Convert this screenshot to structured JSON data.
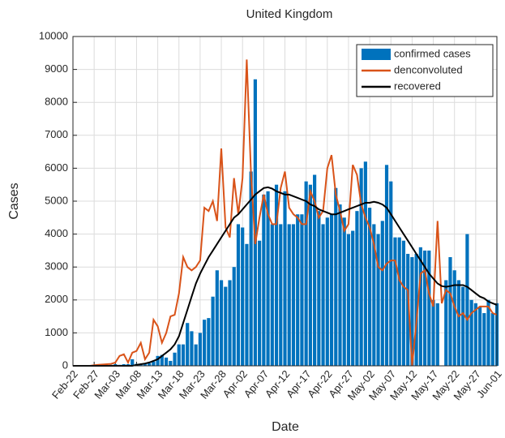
{
  "chart_data": {
    "type": "bar",
    "title": "United Kingdom",
    "xlabel": "Date",
    "ylabel": "Cases",
    "x": [
      0,
      1,
      2,
      3,
      4,
      5,
      6,
      7,
      8,
      9,
      10,
      11,
      12,
      13,
      14,
      15,
      16,
      17,
      18,
      19,
      20,
      21,
      22,
      23,
      24,
      25,
      26,
      27,
      28,
      29,
      30,
      31,
      32,
      33,
      34,
      35,
      36,
      37,
      38,
      39,
      40,
      41,
      42,
      43,
      44,
      45,
      46,
      47,
      48,
      49,
      50,
      51,
      52,
      53,
      54,
      55,
      56,
      57,
      58,
      59,
      60,
      61,
      62,
      63,
      64,
      65,
      66,
      67,
      68,
      69,
      70,
      71,
      72,
      73,
      74,
      75,
      76,
      77,
      78,
      79,
      80,
      81,
      82,
      83,
      84,
      85,
      86,
      87,
      88,
      89,
      90,
      91,
      92,
      93,
      94,
      95,
      96,
      97,
      98,
      99,
      100
    ],
    "xlim": [
      0,
      100
    ],
    "xticks": [
      {
        "value": 0,
        "label": "Feb-22"
      },
      {
        "value": 5,
        "label": "Feb-27"
      },
      {
        "value": 10,
        "label": "Mar-03"
      },
      {
        "value": 15,
        "label": "Mar-08"
      },
      {
        "value": 20,
        "label": "Mar-13"
      },
      {
        "value": 25,
        "label": "Mar-18"
      },
      {
        "value": 30,
        "label": "Mar-23"
      },
      {
        "value": 35,
        "label": "Mar-28"
      },
      {
        "value": 40,
        "label": "Apr-02"
      },
      {
        "value": 45,
        "label": "Apr-07"
      },
      {
        "value": 50,
        "label": "Apr-12"
      },
      {
        "value": 55,
        "label": "Apr-17"
      },
      {
        "value": 60,
        "label": "Apr-22"
      },
      {
        "value": 65,
        "label": "Apr-27"
      },
      {
        "value": 70,
        "label": "May-02"
      },
      {
        "value": 75,
        "label": "May-07"
      },
      {
        "value": 80,
        "label": "May-12"
      },
      {
        "value": 85,
        "label": "May-17"
      },
      {
        "value": 90,
        "label": "May-22"
      },
      {
        "value": 95,
        "label": "May-27"
      },
      {
        "value": 100,
        "label": "Jun-01"
      }
    ],
    "ylim": [
      0,
      10000
    ],
    "yticks": [
      0,
      1000,
      2000,
      3000,
      4000,
      5000,
      6000,
      7000,
      8000,
      9000,
      10000
    ],
    "grid": true,
    "legend": "upper right",
    "series": [
      {
        "name": "confirmed cases",
        "type": "bar",
        "color": "#0072bd",
        "values": [
          0,
          0,
          0,
          0,
          0,
          10,
          10,
          20,
          20,
          30,
          50,
          30,
          50,
          50,
          200,
          60,
          50,
          60,
          80,
          130,
          300,
          330,
          250,
          150,
          400,
          650,
          650,
          1300,
          1050,
          650,
          1000,
          1400,
          1450,
          2100,
          2900,
          2600,
          2400,
          2600,
          3000,
          4300,
          4200,
          3700,
          5900,
          8700,
          3800,
          5200,
          5300,
          4300,
          5500,
          4300,
          5300,
          4300,
          4300,
          4600,
          4600,
          5600,
          5500,
          5800,
          4700,
          4300,
          4500,
          4600,
          5400,
          4900,
          4500,
          4000,
          4100,
          4700,
          6000,
          6200,
          4800,
          4300,
          4000,
          4400,
          6100,
          5600,
          3900,
          3900,
          3800,
          3400,
          3300,
          3400,
          3600,
          3500,
          3500,
          2000,
          1900,
          0,
          2600,
          3300,
          2900,
          2600,
          2400,
          4000,
          2000,
          1900,
          1800,
          1600,
          2000,
          1600,
          1900
        ]
      },
      {
        "name": "denconvoluted",
        "type": "line",
        "color": "#d95319",
        "values": [
          0,
          0,
          0,
          0,
          0,
          20,
          30,
          40,
          50,
          60,
          100,
          300,
          350,
          100,
          400,
          450,
          700,
          200,
          400,
          1400,
          1200,
          700,
          1000,
          1500,
          1550,
          2200,
          3300,
          3000,
          2900,
          3000,
          3200,
          4800,
          4700,
          5000,
          4400,
          6600,
          4200,
          3900,
          5700,
          4600,
          5700,
          9300,
          5800,
          3700,
          4500,
          5200,
          4600,
          4300,
          4300,
          5400,
          5900,
          4800,
          4600,
          4500,
          4300,
          4300,
          5300,
          5000,
          4500,
          4700,
          6000,
          6400,
          5200,
          4700,
          4100,
          4300,
          6100,
          5800,
          4900,
          4500,
          4200,
          3700,
          3000,
          2900,
          3100,
          3200,
          3200,
          2600,
          2400,
          2300,
          0,
          1300,
          2800,
          2900,
          2200,
          1800,
          4400,
          1900,
          2300,
          2200,
          1800,
          1500,
          1600,
          1400,
          1600,
          1700,
          1800,
          1800,
          1800,
          1600,
          1550
        ]
      },
      {
        "name": "recovered",
        "type": "line",
        "color": "#000000",
        "values": [
          0,
          0,
          0,
          0,
          0,
          0,
          0,
          0,
          0,
          0,
          0,
          0,
          0,
          0,
          0,
          30,
          50,
          70,
          100,
          150,
          200,
          300,
          400,
          500,
          650,
          900,
          1300,
          1700,
          2100,
          2500,
          2800,
          3050,
          3300,
          3500,
          3700,
          3900,
          4100,
          4300,
          4500,
          4600,
          4750,
          4900,
          5050,
          5200,
          5300,
          5400,
          5420,
          5380,
          5300,
          5250,
          5200,
          5200,
          5150,
          5100,
          5050,
          5000,
          4900,
          4850,
          4750,
          4700,
          4650,
          4600,
          4600,
          4650,
          4700,
          4750,
          4800,
          4850,
          4900,
          4950,
          4950,
          4980,
          4950,
          4900,
          4800,
          4600,
          4400,
          4200,
          4000,
          3800,
          3600,
          3400,
          3200,
          3000,
          2800,
          2650,
          2500,
          2420,
          2400,
          2420,
          2450,
          2450,
          2450,
          2400,
          2300,
          2200,
          2100,
          2050,
          1950,
          1900,
          1850
        ]
      }
    ]
  }
}
